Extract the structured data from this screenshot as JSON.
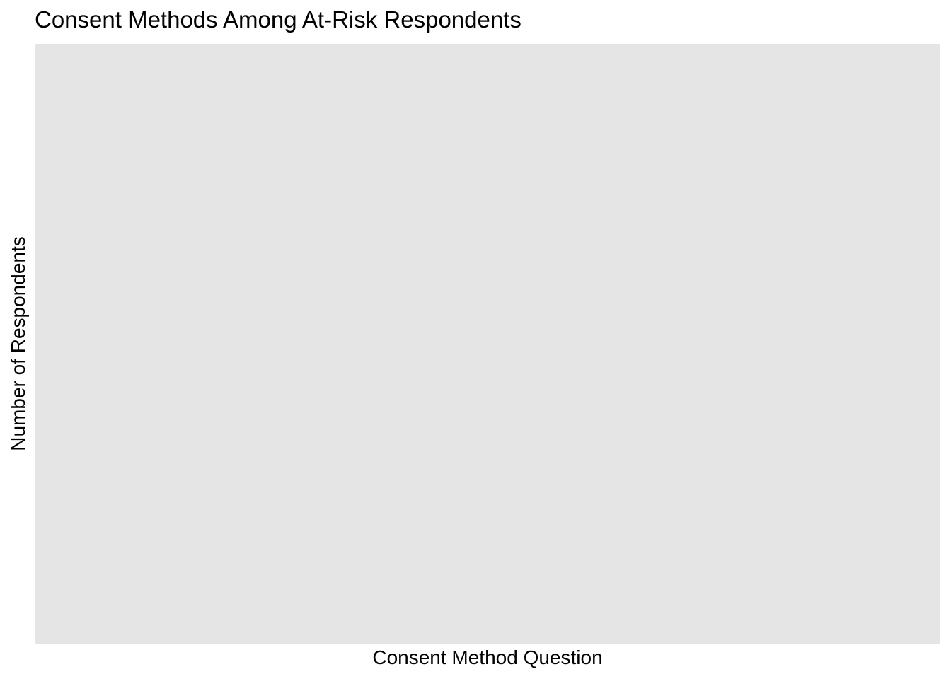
{
  "chart_data": {
    "type": "bar",
    "title": "Consent Methods Among At-Risk Respondents",
    "xlabel": "Consent Method Question",
    "ylabel": "Number of Respondents",
    "categories": [],
    "series": [],
    "grid": false,
    "legend": "none",
    "colors": {
      "panel_background": "#e5e5e5",
      "page_background": "#ffffff",
      "text": "#000000"
    }
  }
}
